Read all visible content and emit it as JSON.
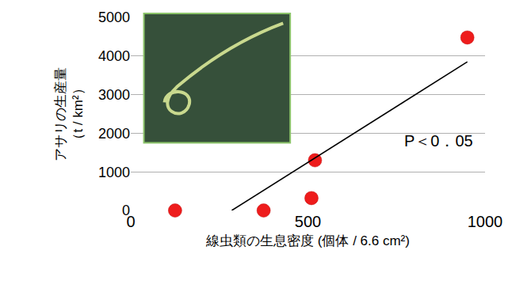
{
  "chart_data": {
    "type": "scatter",
    "x_label": "線虫類の生息密度 (個体 / 6.6 cm²)",
    "y_label": "アサリの生産量\n（t / km²）",
    "annotations": [
      {
        "text": "P＜0．05"
      }
    ],
    "series": [
      {
        "type": "scatter",
        "marker": "circle",
        "color": "#ee1c1c",
        "x": [
          125,
          375,
          510,
          520,
          950
        ],
        "values": [
          0,
          0,
          320,
          1300,
          4480
        ]
      },
      {
        "type": "line",
        "line_style": "solid",
        "color": "#000000",
        "x": [
          285,
          950
        ],
        "values": [
          0,
          3850
        ]
      }
    ],
    "xlim": [
      0,
      1000
    ],
    "xticks": [
      0,
      500,
      1000
    ],
    "ylim": [
      0,
      5000
    ],
    "yticks": [
      0,
      1000,
      2000,
      3000,
      4000,
      5000
    ],
    "grid": "y",
    "legend": false
  }
}
